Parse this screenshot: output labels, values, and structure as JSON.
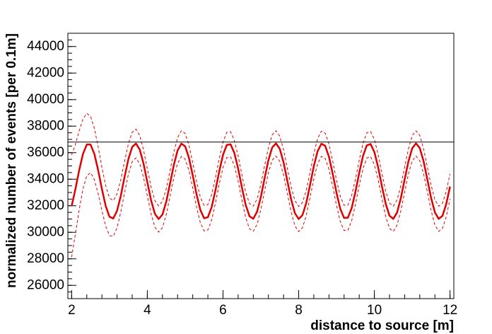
{
  "chart_data": {
    "type": "line",
    "x_label": "distance to source [m]",
    "y_label": "normalized number of events [per 0.1m]",
    "xlim": [
      1.9,
      12.1
    ],
    "ylim": [
      25000,
      45000
    ],
    "xticks": [
      2,
      4,
      6,
      8,
      10,
      12
    ],
    "yticks": [
      26000,
      28000,
      30000,
      32000,
      34000,
      36000,
      38000,
      40000,
      42000,
      44000
    ],
    "grid": false,
    "hline": 36800,
    "hline_color": "#000000",
    "x": [
      2,
      2.1,
      2.2,
      2.3,
      2.4,
      2.5,
      2.6,
      2.7,
      2.8,
      2.9,
      3,
      3.1,
      3.2,
      3.3,
      3.4,
      3.5,
      3.6,
      3.7,
      3.8,
      3.9,
      4,
      4.1,
      4.2,
      4.3,
      4.4,
      4.5,
      4.6,
      4.7,
      4.8,
      4.9,
      5,
      5.1,
      5.2,
      5.3,
      5.4,
      5.5,
      5.6,
      5.7,
      5.8,
      5.9,
      6,
      6.1,
      6.2,
      6.3,
      6.4,
      6.5,
      6.6,
      6.7,
      6.8,
      6.9,
      7,
      7.1,
      7.2,
      7.3,
      7.4,
      7.5,
      7.6,
      7.7,
      7.8,
      7.9,
      8,
      8.1,
      8.2,
      8.3,
      8.4,
      8.5,
      8.6,
      8.7,
      8.8,
      8.9,
      9,
      9.1,
      9.2,
      9.3,
      9.4,
      9.5,
      9.6,
      9.7,
      9.8,
      9.9,
      10,
      10.1,
      10.2,
      10.3,
      10.4,
      10.5,
      10.6,
      10.7,
      10.8,
      10.9,
      11,
      11.1,
      11.2,
      11.3,
      11.4,
      11.5,
      11.6,
      11.7,
      11.8,
      11.9,
      12
    ],
    "series": [
      {
        "color": "#e00000",
        "dashed": false,
        "width": 2.5,
        "values": [
          31980,
          33260,
          34690,
          35910,
          36610,
          36610,
          35910,
          34690,
          33260,
          31980,
          31170,
          31040,
          31620,
          32760,
          34190,
          35520,
          36430,
          36690,
          36230,
          35170,
          33770,
          32400,
          31390,
          31000,
          31340,
          32300,
          33670,
          35070,
          36170,
          36680,
          36480,
          35610,
          34290,
          32870,
          31690,
          31060,
          31130,
          31900,
          33150,
          34590,
          35830,
          36580,
          36630,
          35980,
          34800,
          33370,
          32060,
          31210,
          31020,
          31550,
          32660,
          34080,
          35430,
          36390,
          36700,
          36290,
          35270,
          33880,
          32490,
          31440,
          31000,
          31290,
          32210,
          33560,
          34980,
          36110,
          36670,
          36520,
          35690,
          34400,
          32970,
          31760,
          31080,
          31100,
          31820,
          33050,
          34480,
          35750,
          36550,
          36650,
          36050,
          34900,
          33470,
          32150,
          31250,
          31010,
          31490,
          32570,
          33970,
          35340,
          36330,
          36700,
          36350,
          35360,
          33990,
          32590,
          31500,
          31010,
          31240,
          32130,
          33450
        ]
      },
      {
        "color": "#e00000",
        "dashed": true,
        "width": 1,
        "values": [
          35830,
          36630,
          37660,
          38540,
          38960,
          38730,
          37840,
          36450,
          34890,
          33500,
          32590,
          32380,
          32900,
          33980,
          35370,
          36660,
          37540,
          37770,
          37290,
          36210,
          34800,
          33410,
          32390,
          31990,
          32330,
          33280,
          34640,
          36040,
          37140,
          37650,
          37450,
          36570,
          35250,
          33830,
          32650,
          32020,
          32090,
          32860,
          34110,
          35550,
          36790,
          37530,
          37580,
          36930,
          35750,
          34320,
          33010,
          32160,
          31970,
          32500,
          33610,
          35030,
          36380,
          37340,
          37650,
          37240,
          36220,
          34830,
          33440,
          32390,
          31950,
          32240,
          33160,
          34510,
          35930,
          37060,
          37620,
          37470,
          36640,
          35350,
          33920,
          32710,
          32030,
          32050,
          32770,
          34000,
          35430,
          36700,
          37500,
          37600,
          37000,
          35850,
          34420,
          33100,
          32200,
          31960,
          32440,
          33520,
          34920,
          36290,
          37280,
          37650,
          37300,
          36310,
          34940,
          33540,
          32450,
          31960,
          32190,
          33080,
          34400
        ]
      },
      {
        "color": "#e00000",
        "dashed": true,
        "width": 1,
        "values": [
          28130,
          29890,
          31720,
          33280,
          34260,
          34490,
          33980,
          32930,
          31630,
          30460,
          29750,
          29700,
          30340,
          31540,
          33010,
          34380,
          35320,
          35610,
          35170,
          34130,
          32740,
          31390,
          30390,
          30010,
          30350,
          31320,
          32700,
          34100,
          35200,
          35710,
          35510,
          34650,
          33330,
          31910,
          30730,
          30100,
          30170,
          30940,
          32190,
          33630,
          34870,
          35630,
          35680,
          35030,
          33850,
          32420,
          31110,
          30260,
          30070,
          30600,
          31710,
          33130,
          34480,
          35440,
          35750,
          35340,
          34320,
          32930,
          31540,
          30490,
          30050,
          30340,
          31260,
          32610,
          34030,
          35160,
          35720,
          35570,
          34740,
          33450,
          32020,
          30810,
          30130,
          30150,
          30870,
          32100,
          33530,
          34800,
          35600,
          35700,
          35100,
          33950,
          32520,
          31200,
          30300,
          30060,
          30540,
          31620,
          33020,
          34390,
          35380,
          35750,
          35400,
          34410,
          33040,
          31640,
          30550,
          30060,
          30290,
          31180,
          32500
        ]
      }
    ]
  }
}
